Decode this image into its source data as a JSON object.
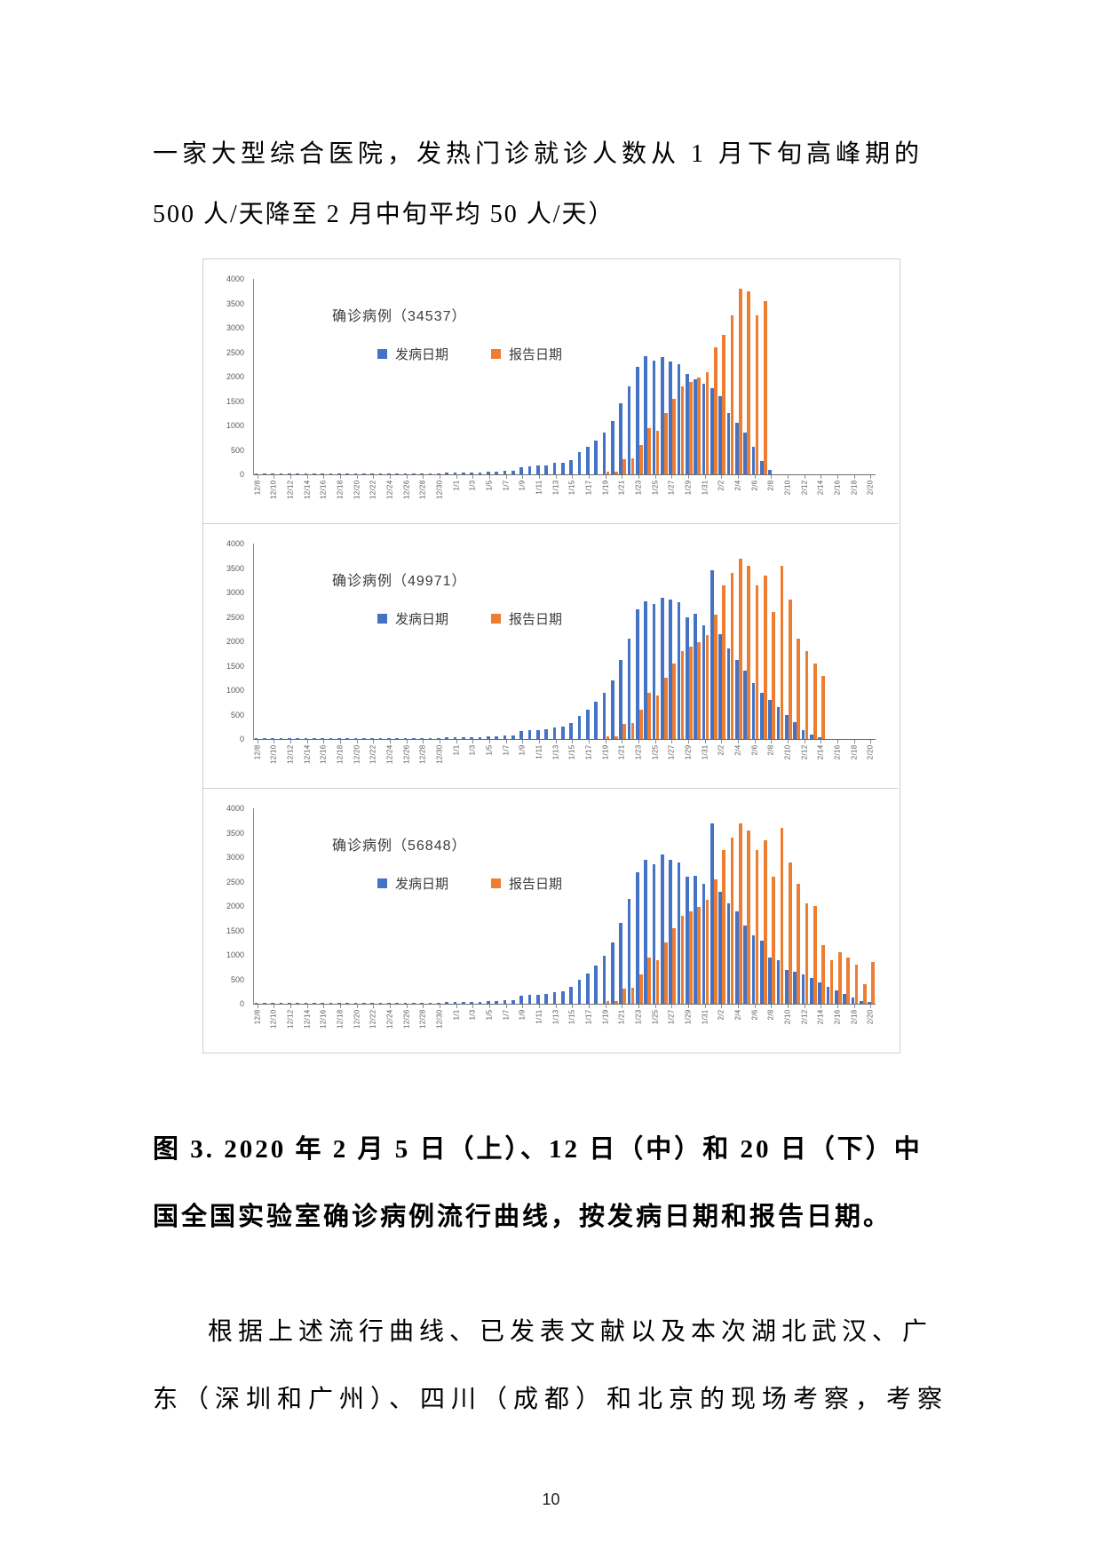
{
  "page": {
    "paragraph_top": {
      "line1": "一家大型综合医院，发热门诊就诊人数从 1 月下旬高峰期的",
      "line2": "500 人/天降至 2 月中旬平均 50 人/天）"
    },
    "figure_caption": {
      "line1": "图 3. 2020 年 2 月 5 日（上）、12 日（中）和 20 日（下）中",
      "line2": "国全国实验室确诊病例流行曲线，按发病日期和报告日期。"
    },
    "paragraph_bottom": {
      "line1": "根据上述流行曲线、已发表文献以及本次湖北武汉、广",
      "line2": "东（深圳和广州）、四川（成都）和北京的现场考察，考察"
    },
    "page_number": "10"
  },
  "chart_data": [
    {
      "type": "bar",
      "title": "确诊病例（34537）",
      "total_cases": 34537,
      "snapshot_label": "2020-02-05 (上)",
      "ylim": [
        0,
        4000
      ],
      "ytick_step": 500,
      "grid": false,
      "legend_position": "top-left-inside",
      "x_label_every": 2,
      "dates": [
        "12/8",
        "12/9",
        "12/10",
        "12/11",
        "12/12",
        "12/13",
        "12/14",
        "12/15",
        "12/16",
        "12/17",
        "12/18",
        "12/19",
        "12/20",
        "12/21",
        "12/22",
        "12/23",
        "12/24",
        "12/25",
        "12/26",
        "12/27",
        "12/28",
        "12/29",
        "12/30",
        "12/31",
        "1/1",
        "1/2",
        "1/3",
        "1/4",
        "1/5",
        "1/6",
        "1/7",
        "1/8",
        "1/9",
        "1/10",
        "1/11",
        "1/12",
        "1/13",
        "1/14",
        "1/15",
        "1/16",
        "1/17",
        "1/18",
        "1/19",
        "1/20",
        "1/21",
        "1/22",
        "1/23",
        "1/24",
        "1/25",
        "1/26",
        "1/27",
        "1/28",
        "1/29",
        "1/30",
        "1/31",
        "2/1",
        "2/2",
        "2/3",
        "2/4",
        "2/5",
        "2/6",
        "2/7",
        "2/8",
        "2/9",
        "2/10",
        "2/11",
        "2/12",
        "2/13",
        "2/14",
        "2/15",
        "2/16",
        "2/17",
        "2/18",
        "2/19",
        "2/20"
      ],
      "series": [
        {
          "name": "发病日期",
          "color": "#4472c4",
          "values": [
            8,
            4,
            6,
            4,
            6,
            5,
            8,
            6,
            10,
            8,
            10,
            12,
            14,
            12,
            16,
            14,
            16,
            15,
            18,
            20,
            22,
            24,
            26,
            28,
            40,
            34,
            44,
            38,
            50,
            55,
            65,
            80,
            150,
            170,
            180,
            190,
            230,
            245,
            300,
            450,
            560,
            700,
            860,
            1100,
            1450,
            1800,
            2200,
            2420,
            2330,
            2400,
            2310,
            2250,
            2060,
            1950,
            1850,
            1760,
            1600,
            1260,
            1050,
            850,
            560,
            280,
            100,
            0,
            0,
            0,
            0,
            0,
            0,
            0,
            0,
            0,
            0,
            0,
            0
          ]
        },
        {
          "name": "报告日期",
          "color": "#ed7d31",
          "values": [
            0,
            0,
            0,
            0,
            0,
            0,
            0,
            0,
            0,
            0,
            0,
            0,
            0,
            0,
            0,
            0,
            0,
            0,
            0,
            0,
            0,
            0,
            0,
            0,
            0,
            0,
            0,
            0,
            0,
            0,
            0,
            0,
            0,
            0,
            0,
            0,
            0,
            0,
            0,
            0,
            0,
            0,
            50,
            60,
            310,
            330,
            600,
            950,
            900,
            1250,
            1550,
            1800,
            1900,
            1980,
            2100,
            2600,
            2850,
            3250,
            3800,
            3750,
            3250,
            3550,
            0,
            0,
            0,
            0,
            0,
            0,
            0,
            0,
            0,
            0,
            0,
            0,
            0
          ]
        }
      ]
    },
    {
      "type": "bar",
      "title": "确诊病例（49971）",
      "total_cases": 49971,
      "snapshot_label": "2020-02-12 (中)",
      "ylim": [
        0,
        4000
      ],
      "ytick_step": 500,
      "grid": false,
      "legend_position": "top-left-inside",
      "x_label_every": 2,
      "dates": [
        "12/8",
        "12/9",
        "12/10",
        "12/11",
        "12/12",
        "12/13",
        "12/14",
        "12/15",
        "12/16",
        "12/17",
        "12/18",
        "12/19",
        "12/20",
        "12/21",
        "12/22",
        "12/23",
        "12/24",
        "12/25",
        "12/26",
        "12/27",
        "12/28",
        "12/29",
        "12/30",
        "12/31",
        "1/1",
        "1/2",
        "1/3",
        "1/4",
        "1/5",
        "1/6",
        "1/7",
        "1/8",
        "1/9",
        "1/10",
        "1/11",
        "1/12",
        "1/13",
        "1/14",
        "1/15",
        "1/16",
        "1/17",
        "1/18",
        "1/19",
        "1/20",
        "1/21",
        "1/22",
        "1/23",
        "1/24",
        "1/25",
        "1/26",
        "1/27",
        "1/28",
        "1/29",
        "1/30",
        "1/31",
        "2/1",
        "2/2",
        "2/3",
        "2/4",
        "2/5",
        "2/6",
        "2/7",
        "2/8",
        "2/9",
        "2/10",
        "2/11",
        "2/12",
        "2/13",
        "2/14",
        "2/15",
        "2/16",
        "2/17",
        "2/18",
        "2/19",
        "2/20"
      ],
      "series": [
        {
          "name": "发病日期",
          "color": "#4472c4",
          "values": [
            8,
            4,
            6,
            4,
            6,
            5,
            8,
            6,
            10,
            8,
            10,
            12,
            14,
            12,
            16,
            14,
            16,
            15,
            18,
            20,
            22,
            24,
            26,
            28,
            40,
            34,
            44,
            38,
            50,
            55,
            65,
            80,
            155,
            175,
            185,
            200,
            240,
            260,
            330,
            480,
            600,
            760,
            950,
            1200,
            1620,
            2060,
            2650,
            2820,
            2760,
            2900,
            2850,
            2800,
            2500,
            2560,
            2320,
            3450,
            2150,
            1850,
            1620,
            1400,
            1150,
            950,
            800,
            650,
            500,
            350,
            180,
            90,
            30,
            0,
            0,
            0,
            0,
            0,
            0
          ]
        },
        {
          "name": "报告日期",
          "color": "#ed7d31",
          "values": [
            0,
            0,
            0,
            0,
            0,
            0,
            0,
            0,
            0,
            0,
            0,
            0,
            0,
            0,
            0,
            0,
            0,
            0,
            0,
            0,
            0,
            0,
            0,
            0,
            0,
            0,
            0,
            0,
            0,
            0,
            0,
            0,
            0,
            0,
            0,
            0,
            0,
            0,
            0,
            0,
            0,
            0,
            50,
            60,
            310,
            330,
            600,
            950,
            900,
            1250,
            1550,
            1800,
            1900,
            1980,
            2120,
            2550,
            3150,
            3400,
            3700,
            3550,
            3150,
            3350,
            2600,
            3550,
            2850,
            2050,
            1800,
            1550,
            1300,
            0,
            0,
            0,
            0,
            0,
            0
          ]
        }
      ]
    },
    {
      "type": "bar",
      "title": "确诊病例（56848）",
      "total_cases": 56848,
      "snapshot_label": "2020-02-20 (下)",
      "ylim": [
        0,
        4000
      ],
      "ytick_step": 500,
      "grid": false,
      "legend_position": "top-left-inside",
      "x_label_every": 2,
      "dates": [
        "12/8",
        "12/9",
        "12/10",
        "12/11",
        "12/12",
        "12/13",
        "12/14",
        "12/15",
        "12/16",
        "12/17",
        "12/18",
        "12/19",
        "12/20",
        "12/21",
        "12/22",
        "12/23",
        "12/24",
        "12/25",
        "12/26",
        "12/27",
        "12/28",
        "12/29",
        "12/30",
        "12/31",
        "1/1",
        "1/2",
        "1/3",
        "1/4",
        "1/5",
        "1/6",
        "1/7",
        "1/8",
        "1/9",
        "1/10",
        "1/11",
        "1/12",
        "1/13",
        "1/14",
        "1/15",
        "1/16",
        "1/17",
        "1/18",
        "1/19",
        "1/20",
        "1/21",
        "1/22",
        "1/23",
        "1/24",
        "1/25",
        "1/26",
        "1/27",
        "1/28",
        "1/29",
        "1/30",
        "1/31",
        "2/1",
        "2/2",
        "2/3",
        "2/4",
        "2/5",
        "2/6",
        "2/7",
        "2/8",
        "2/9",
        "2/10",
        "2/11",
        "2/12",
        "2/13",
        "2/14",
        "2/15",
        "2/16",
        "2/17",
        "2/18",
        "2/19",
        "2/20"
      ],
      "series": [
        {
          "name": "发病日期",
          "color": "#4472c4",
          "values": [
            8,
            4,
            6,
            4,
            6,
            5,
            8,
            6,
            10,
            8,
            10,
            12,
            14,
            12,
            16,
            14,
            16,
            15,
            18,
            20,
            22,
            24,
            26,
            28,
            40,
            34,
            44,
            38,
            50,
            55,
            65,
            80,
            155,
            175,
            185,
            200,
            240,
            260,
            340,
            500,
            620,
            780,
            980,
            1250,
            1650,
            2150,
            2700,
            2950,
            2860,
            3050,
            2950,
            2900,
            2600,
            2620,
            2450,
            3700,
            2300,
            2050,
            1900,
            1600,
            1400,
            1300,
            950,
            900,
            700,
            650,
            600,
            520,
            430,
            350,
            280,
            200,
            120,
            60,
            30
          ]
        },
        {
          "name": "报告日期",
          "color": "#ed7d31",
          "values": [
            0,
            0,
            0,
            0,
            0,
            0,
            0,
            0,
            0,
            0,
            0,
            0,
            0,
            0,
            0,
            0,
            0,
            0,
            0,
            0,
            0,
            0,
            0,
            0,
            0,
            0,
            0,
            0,
            0,
            0,
            0,
            0,
            0,
            0,
            0,
            0,
            0,
            0,
            0,
            0,
            0,
            0,
            50,
            60,
            310,
            330,
            600,
            950,
            900,
            1250,
            1550,
            1800,
            1900,
            1980,
            2120,
            2550,
            3150,
            3400,
            3700,
            3550,
            3150,
            3350,
            2600,
            3600,
            2900,
            2450,
            2050,
            2000,
            1200,
            900,
            1050,
            950,
            800,
            400,
            850
          ]
        }
      ]
    }
  ]
}
